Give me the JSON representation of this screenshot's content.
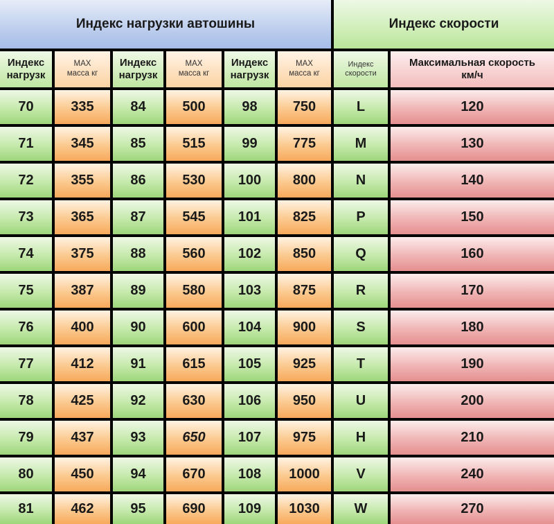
{
  "banners": {
    "load": "Индекс нагрузки автошины",
    "speed": "Индекс скорости"
  },
  "headers": {
    "load_index_line1": "Индекс",
    "load_index_line2": "нагрузк",
    "max_line1": "MAX",
    "max_line2": "масса кг",
    "speed_index_line1": "Индекс",
    "speed_index_line2": "скорости",
    "max_speed_line1": "Максимальная скорость",
    "max_speed_line2": "км/ч"
  },
  "rows": [
    {
      "l1": "70",
      "m1": "335",
      "l2": "84",
      "m2": "500",
      "l3": "98",
      "m3": "750",
      "si": "L",
      "sp": "120"
    },
    {
      "l1": "71",
      "m1": "345",
      "l2": "85",
      "m2": "515",
      "l3": "99",
      "m3": "775",
      "si": "M",
      "sp": "130"
    },
    {
      "l1": "72",
      "m1": "355",
      "l2": "86",
      "m2": "530",
      "l3": "100",
      "m3": "800",
      "si": "N",
      "sp": "140"
    },
    {
      "l1": "73",
      "m1": "365",
      "l2": "87",
      "m2": "545",
      "l3": "101",
      "m3": "825",
      "si": "P",
      "sp": "150"
    },
    {
      "l1": "74",
      "m1": "375",
      "l2": "88",
      "m2": "560",
      "l3": "102",
      "m3": "850",
      "si": "Q",
      "sp": "160"
    },
    {
      "l1": "75",
      "m1": "387",
      "l2": "89",
      "m2": "580",
      "l3": "103",
      "m3": "875",
      "si": "R",
      "sp": "170"
    },
    {
      "l1": "76",
      "m1": "400",
      "l2": "90",
      "m2": "600",
      "l3": "104",
      "m3": "900",
      "si": "S",
      "sp": "180"
    },
    {
      "l1": "77",
      "m1": "412",
      "l2": "91",
      "m2": "615",
      "l3": "105",
      "m3": "925",
      "si": "T",
      "sp": "190"
    },
    {
      "l1": "78",
      "m1": "425",
      "l2": "92",
      "m2": "630",
      "l3": "106",
      "m3": "950",
      "si": "U",
      "sp": "200"
    },
    {
      "l1": "79",
      "m1": "437",
      "l2": "93",
      "m2": "650",
      "l3": "107",
      "m3": "975",
      "si": "H",
      "sp": "210"
    },
    {
      "l1": "80",
      "m1": "450",
      "l2": "94",
      "m2": "670",
      "l3": "108",
      "m3": "1000",
      "si": "V",
      "sp": "240"
    },
    {
      "l1": "81",
      "m1": "462",
      "l2": "95",
      "m2": "690",
      "l3": "109",
      "m3": "1030",
      "si": "W",
      "sp": "270"
    }
  ],
  "colors": {
    "load_index_fill": "#9dd67a",
    "mass_fill": "#f7a95b",
    "speed_fill": "#e58f8f",
    "load_banner": "#a6bde8",
    "speed_banner": "#b9e59a",
    "grid_lines": "#000000"
  }
}
